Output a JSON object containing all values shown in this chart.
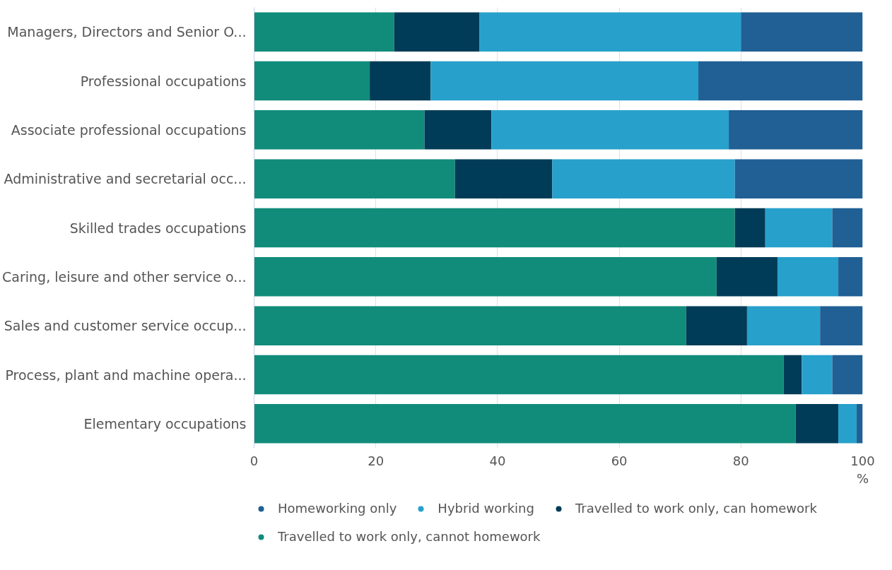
{
  "chart_data": {
    "type": "bar",
    "orientation": "horizontal",
    "stacked": true,
    "xlabel": "%",
    "categories": [
      "Managers, Directors and Senior O...",
      "Professional occupations",
      "Associate professional occupations",
      "Administrative and secretarial occ...",
      "Skilled trades occupations",
      "Caring, leisure and other service o...",
      "Sales and customer service occup...",
      "Process, plant and machine opera...",
      "Elementary occupations"
    ],
    "series": [
      {
        "name": "Travelled to work only, cannot homework",
        "color": "#118c7b",
        "values": [
          23,
          19,
          28,
          33,
          79,
          76,
          71,
          87,
          89
        ]
      },
      {
        "name": "Travelled to work only, can homework",
        "color": "#003c57",
        "values": [
          14,
          10,
          11,
          16,
          5,
          10,
          10,
          3,
          7
        ]
      },
      {
        "name": "Hybrid working",
        "color": "#27a0cc",
        "values": [
          43,
          44,
          39,
          30,
          11,
          10,
          12,
          5,
          3
        ]
      },
      {
        "name": "Homeworking only",
        "color": "#206095",
        "values": [
          20,
          27,
          22,
          21,
          5,
          4,
          7,
          5,
          1
        ]
      }
    ],
    "xlim": [
      0,
      100
    ],
    "xticks": [
      0,
      20,
      40,
      60,
      80,
      100
    ],
    "grid": "x",
    "legend": "bottom"
  }
}
